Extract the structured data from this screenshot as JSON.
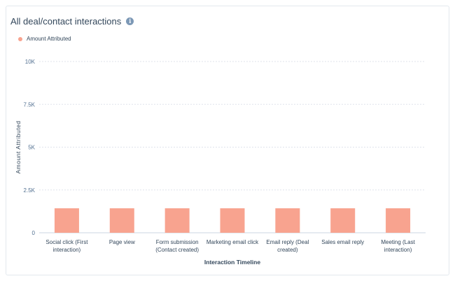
{
  "header": {
    "title": "All deal/contact interactions",
    "info_icon": "info-icon"
  },
  "chart_data": {
    "type": "bar",
    "title": "All deal/contact interactions",
    "xlabel": "Interaction Timeline",
    "ylabel": "Amount Attributed",
    "ylim": [
      0,
      10000
    ],
    "yticks": [
      0,
      2500,
      5000,
      7500,
      10000
    ],
    "yticklabels": [
      "0",
      "2.5K",
      "5K",
      "7.5K",
      "10K"
    ],
    "grid": true,
    "legend": "top-left",
    "categories": [
      [
        "Social click (First",
        "interaction)"
      ],
      [
        "Page view"
      ],
      [
        "Form submission",
        "(Contact created)"
      ],
      [
        "Marketing email click"
      ],
      [
        "Email reply (Deal",
        "created)"
      ],
      [
        "Sales email reply"
      ],
      [
        "Meeting (Last",
        "interaction)"
      ]
    ],
    "series": [
      {
        "name": "Amount Attributed",
        "color": "#f8a38f",
        "values": [
          1430,
          1430,
          1430,
          1430,
          1430,
          1430,
          1430
        ]
      }
    ]
  }
}
